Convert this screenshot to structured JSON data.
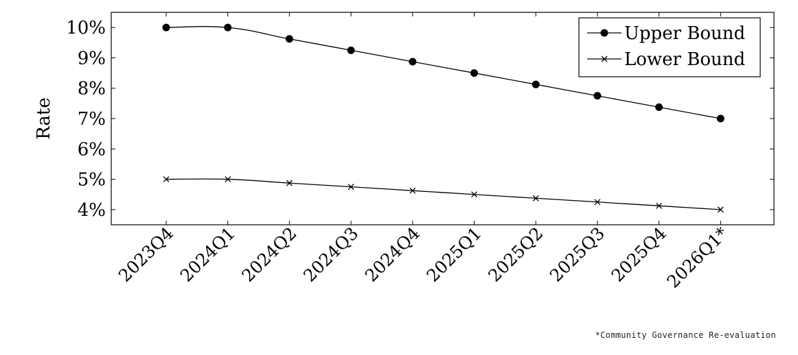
{
  "chart_data": {
    "type": "line",
    "ylabel": "Rate",
    "ytick_labels": [
      "4%",
      "5%",
      "6%",
      "7%",
      "8%",
      "9%",
      "10%"
    ],
    "ylim": [
      3.5,
      10.5
    ],
    "grid": false,
    "legend_position": "top-right",
    "categories": [
      "2023Q4",
      "2024Q1",
      "2024Q2",
      "2024Q3",
      "2024Q4",
      "2025Q1",
      "2025Q2",
      "2025Q3",
      "2025Q4",
      "2026Q1*"
    ],
    "series": [
      {
        "name": "Upper Bound",
        "marker": "filled-circle",
        "values": [
          10.0,
          10.0,
          9.625,
          9.25,
          8.875,
          8.5,
          8.125,
          7.75,
          7.375,
          7.0
        ]
      },
      {
        "name": "Lower Bound",
        "marker": "x",
        "values": [
          5.0,
          5.0,
          4.875,
          4.75,
          4.625,
          4.5,
          4.375,
          4.25,
          4.125,
          4.0
        ]
      }
    ],
    "footnote": "*Community Governance Re-evaluation"
  }
}
